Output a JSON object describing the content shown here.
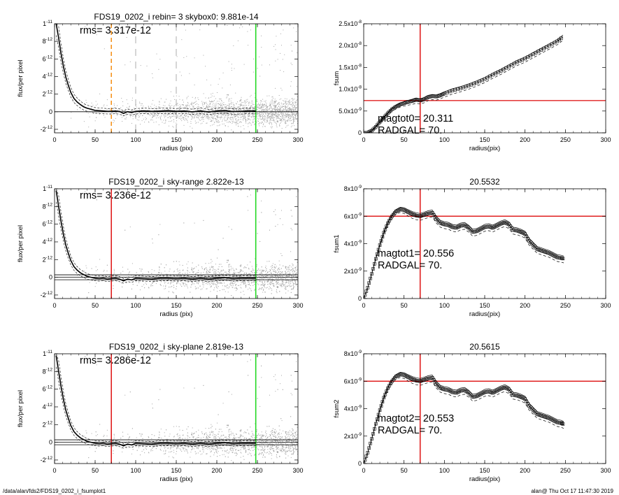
{
  "footer": {
    "left": "/data/alan/fds2/FDS19_0202_i_fsumplot1",
    "right": "alan@  Thu Oct 17 11:47:30 2019"
  },
  "colors": {
    "orange": "#f5941e",
    "green": "#23d923",
    "red": "#e02020",
    "scatter": "#a6a6a6"
  },
  "chart_data": [
    {
      "type": "scatter",
      "title": "FDS19_0202_i rebin= 3    skybox0:  9.881e-14",
      "xlabel": "radius (pix)",
      "ylabel": "flux/per pixel",
      "xlim": [
        0,
        300
      ],
      "ylim": [
        -2.4e-12,
        1e-11
      ],
      "xticks": [
        0,
        50,
        100,
        150,
        200,
        250,
        300
      ],
      "xtick_labels": [
        "0",
        "50",
        "100",
        "150",
        "200",
        "250",
        "300"
      ],
      "yticks": [
        -2e-12,
        0,
        2e-12,
        4e-12,
        6e-12,
        8e-12,
        1e-11
      ],
      "ytick_labels": [
        [
          "-2",
          "-12"
        ],
        [
          "0",
          ""
        ],
        [
          "2",
          "-12"
        ],
        [
          "4",
          "-12"
        ],
        [
          "6",
          "-12"
        ],
        [
          "8",
          "-12"
        ],
        [
          "1",
          "-11"
        ]
      ],
      "annotation": "rms= 3.317e-12",
      "vlines": [
        {
          "x": 70,
          "color": "orange",
          "style": "dashed"
        },
        {
          "x": 100,
          "color": "gray",
          "style": "dashed-thin"
        },
        {
          "x": 150,
          "color": "gray",
          "style": "dashed-thin"
        },
        {
          "x": 248,
          "color": "green",
          "style": "solid"
        }
      ],
      "profile": {
        "x": [
          2,
          5,
          8,
          11,
          14,
          17,
          20,
          24,
          28,
          32,
          36,
          40,
          45,
          50,
          55,
          60,
          65,
          70,
          75,
          80,
          85,
          90,
          95,
          100,
          110,
          120,
          130,
          140,
          150,
          160,
          170,
          180,
          190,
          200,
          210,
          220,
          230,
          240,
          248
        ],
        "y": [
          1e-11,
          8.4e-12,
          6.6e-12,
          5.1e-12,
          3.9e-12,
          3e-12,
          2.2e-12,
          1.5e-12,
          1.1e-12,
          8e-13,
          5.5e-13,
          4e-13,
          2.8e-13,
          1.5e-13,
          1.2e-13,
          9e-14,
          5e-14,
          6e-14,
          8e-14,
          3e-14,
          -2e-13,
          1e-14,
          -1e-13,
          5e-14,
          1e-13,
          5e-14,
          8e-14,
          1.2e-13,
          6e-14,
          9e-14,
          -1e-14,
          1e-13,
          -3e-14,
          9e-14,
          1.4e-13,
          2e-14,
          5e-14,
          1e-13,
          8e-14
        ]
      },
      "hlines": [
        0
      ]
    },
    {
      "type": "line",
      "title": "",
      "xlabel": "radius(pix)",
      "ylabel": "fsum",
      "xlim": [
        0,
        300
      ],
      "ylim": [
        0,
        2.5e-08
      ],
      "xticks": [
        0,
        50,
        100,
        150,
        200,
        250,
        300
      ],
      "xtick_labels": [
        "0",
        "50",
        "100",
        "150",
        "200",
        "250",
        "300"
      ],
      "yticks": [
        0,
        5e-09,
        1e-08,
        1.5e-08,
        2e-08,
        2.5e-08
      ],
      "ytick_labels": [
        [
          "0",
          ""
        ],
        [
          "5.0x10",
          "-9"
        ],
        [
          "1.0x10",
          "-8"
        ],
        [
          "1.5x10",
          "-8"
        ],
        [
          "2.0x10",
          "-8"
        ],
        [
          "2.5x10",
          "-8"
        ]
      ],
      "annotation_lines": [
        "magtot0=  20.311",
        "RADGAL=     70."
      ],
      "vlines": [
        {
          "x": 70,
          "color": "red",
          "style": "solid"
        }
      ],
      "hlines_color": [
        {
          "y": 7.4e-09,
          "color": "red"
        }
      ],
      "series": [
        {
          "x": [
            0,
            5,
            10,
            15,
            20,
            25,
            30,
            35,
            40,
            45,
            50,
            55,
            60,
            65,
            70,
            75,
            80,
            85,
            90,
            95,
            100,
            110,
            120,
            130,
            140,
            150,
            160,
            170,
            180,
            190,
            200,
            210,
            220,
            230,
            240,
            247
          ],
          "y": [
            0,
            5e-11,
            5e-10,
            1.4e-09,
            2.5e-09,
            3.5e-09,
            4.5e-09,
            5.4e-09,
            6e-09,
            6.5e-09,
            6.8e-09,
            7.1e-09,
            7.3e-09,
            7.6e-09,
            7.4e-09,
            7.7e-09,
            8.2e-09,
            8.4e-09,
            8.3e-09,
            8.6e-09,
            9e-09,
            9.7e-09,
            1.02e-08,
            1.08e-08,
            1.15e-08,
            1.23e-08,
            1.33e-08,
            1.42e-08,
            1.52e-08,
            1.62e-08,
            1.7e-08,
            1.8e-08,
            1.9e-08,
            2e-08,
            2.1e-08,
            2.2e-08
          ]
        }
      ],
      "envelope_offset": [
        4e-10,
        -8e-10
      ]
    },
    {
      "type": "scatter",
      "title": "FDS19_0202_i sky-range  2.822e-13",
      "xlabel": "radius (pix)",
      "ylabel": "flux/per pixel",
      "xlim": [
        0,
        300
      ],
      "ylim": [
        -2.4e-12,
        1e-11
      ],
      "xticks": [
        0,
        50,
        100,
        150,
        200,
        250,
        300
      ],
      "xtick_labels": [
        "0",
        "50",
        "100",
        "150",
        "200",
        "250",
        "300"
      ],
      "yticks": [
        -2e-12,
        0,
        2e-12,
        4e-12,
        6e-12,
        8e-12,
        1e-11
      ],
      "ytick_labels": [
        [
          "-2",
          "-12"
        ],
        [
          "0",
          ""
        ],
        [
          "2",
          "-12"
        ],
        [
          "4",
          "-12"
        ],
        [
          "6",
          "-12"
        ],
        [
          "8",
          "-12"
        ],
        [
          "1",
          "-11"
        ]
      ],
      "annotation": "rms= 3.236e-12",
      "vlines": [
        {
          "x": 70,
          "color": "red",
          "style": "solid"
        },
        {
          "x": 248,
          "color": "green",
          "style": "solid"
        }
      ],
      "profile": {
        "x": [
          2,
          5,
          8,
          11,
          14,
          17,
          20,
          24,
          28,
          32,
          36,
          40,
          45,
          50,
          55,
          60,
          65,
          70,
          75,
          80,
          85,
          90,
          95,
          100,
          110,
          120,
          130,
          140,
          150,
          160,
          170,
          180,
          190,
          200,
          210,
          220,
          230,
          240,
          248
        ],
        "y": [
          9.8e-12,
          8e-12,
          6.3e-12,
          4.8e-12,
          3.6e-12,
          2.7e-12,
          1.9e-12,
          1.2e-12,
          8e-13,
          5e-13,
          3e-13,
          1e-13,
          0,
          -1e-13,
          -1.5e-13,
          -1e-13,
          -2e-13,
          -1.5e-13,
          -1e-13,
          -2e-13,
          -4e-13,
          -2e-13,
          -3e-13,
          -1e-13,
          -1.5e-13,
          -2e-13,
          -1e-13,
          -1e-13,
          -1.5e-13,
          -1e-13,
          -2e-13,
          -1e-13,
          -2e-13,
          -1e-13,
          -5e-14,
          -1.5e-13,
          -1e-13,
          -1e-13,
          -1e-13
        ]
      },
      "hlines": [
        2.8e-13,
        0,
        -2.8e-13
      ]
    },
    {
      "type": "line",
      "title": "20.5532",
      "xlabel": "radius(pix)",
      "ylabel": "fsum1",
      "xlim": [
        0,
        300
      ],
      "ylim": [
        0,
        8e-09
      ],
      "xticks": [
        0,
        50,
        100,
        150,
        200,
        250,
        300
      ],
      "xtick_labels": [
        "0",
        "50",
        "100",
        "150",
        "200",
        "250",
        "300"
      ],
      "yticks": [
        0,
        2e-09,
        4e-09,
        6e-09,
        8e-09
      ],
      "ytick_labels": [
        [
          "0",
          ""
        ],
        [
          "2x10",
          "-9"
        ],
        [
          "4x10",
          "-9"
        ],
        [
          "6x10",
          "-9"
        ],
        [
          "8x10",
          "-9"
        ]
      ],
      "annotation_lines": [
        "magtot1=  20.556",
        "RADGAL=     70."
      ],
      "vlines": [
        {
          "x": 70,
          "color": "red",
          "style": "solid"
        }
      ],
      "hlines_color": [
        {
          "y": 6e-09,
          "color": "red"
        }
      ],
      "series": [
        {
          "x": [
            0,
            5,
            10,
            15,
            20,
            25,
            30,
            35,
            40,
            45,
            50,
            55,
            60,
            65,
            70,
            75,
            80,
            85,
            90,
            95,
            100,
            105,
            110,
            115,
            120,
            125,
            130,
            135,
            140,
            145,
            150,
            155,
            160,
            165,
            170,
            175,
            180,
            185,
            190,
            195,
            200,
            205,
            210,
            215,
            220,
            225,
            230,
            235,
            240,
            245,
            248
          ],
          "y": [
            0,
            8e-10,
            1.8e-09,
            2.9e-09,
            3.9e-09,
            4.8e-09,
            5.5e-09,
            6e-09,
            6.35e-09,
            6.5e-09,
            6.45e-09,
            6.3e-09,
            6.15e-09,
            6.05e-09,
            6e-09,
            6.1e-09,
            6.2e-09,
            6.25e-09,
            5.8e-09,
            5.5e-09,
            5.4e-09,
            5.35e-09,
            5.2e-09,
            5.15e-09,
            5.3e-09,
            5.35e-09,
            5.15e-09,
            4.85e-09,
            4.9e-09,
            5.05e-09,
            5.2e-09,
            5.25e-09,
            5.15e-09,
            5.3e-09,
            5.45e-09,
            5.55e-09,
            5.4e-09,
            5e-09,
            4.95e-09,
            4.85e-09,
            4.7e-09,
            4.2e-09,
            3.9e-09,
            3.6e-09,
            3.5e-09,
            3.4e-09,
            3.3e-09,
            3.15e-09,
            3e-09,
            2.95e-09,
            2.9e-09
          ]
        }
      ],
      "envelope_offset": [
        2e-10,
        -3e-10
      ]
    },
    {
      "type": "scatter",
      "title": "FDS19_0202_i sky-plane  2.819e-13",
      "xlabel": "radius (pix)",
      "ylabel": "flux/per pixel",
      "xlim": [
        0,
        300
      ],
      "ylim": [
        -2.4e-12,
        1e-11
      ],
      "xticks": [
        0,
        50,
        100,
        150,
        200,
        250,
        300
      ],
      "xtick_labels": [
        "0",
        "50",
        "100",
        "150",
        "200",
        "250",
        "300"
      ],
      "yticks": [
        -2e-12,
        0,
        2e-12,
        4e-12,
        6e-12,
        8e-12,
        1e-11
      ],
      "ytick_labels": [
        [
          "-2",
          "-12"
        ],
        [
          "0",
          ""
        ],
        [
          "2",
          "-12"
        ],
        [
          "4",
          "-12"
        ],
        [
          "6",
          "-12"
        ],
        [
          "8",
          "-12"
        ],
        [
          "1",
          "-11"
        ]
      ],
      "annotation": "rms= 3.286e-12",
      "vlines": [
        {
          "x": 70,
          "color": "red",
          "style": "solid"
        },
        {
          "x": 248,
          "color": "green",
          "style": "solid"
        }
      ],
      "profile": {
        "x": [
          2,
          5,
          8,
          11,
          14,
          17,
          20,
          24,
          28,
          32,
          36,
          40,
          45,
          50,
          55,
          60,
          65,
          70,
          75,
          80,
          85,
          90,
          95,
          100,
          110,
          120,
          130,
          140,
          150,
          160,
          170,
          180,
          190,
          200,
          210,
          220,
          230,
          240,
          248
        ],
        "y": [
          9.8e-12,
          8e-12,
          6.3e-12,
          4.8e-12,
          3.6e-12,
          2.7e-12,
          1.9e-12,
          1.2e-12,
          8e-13,
          5e-13,
          3e-13,
          1e-13,
          0,
          -1e-13,
          -1.5e-13,
          -1e-13,
          -2e-13,
          -1.5e-13,
          -1e-13,
          -2e-13,
          -4e-13,
          -2e-13,
          -3e-13,
          -1e-13,
          -1.5e-13,
          -2e-13,
          -1e-13,
          -1e-13,
          -1.5e-13,
          -1e-13,
          -2e-13,
          -1e-13,
          -2e-13,
          -1e-13,
          -5e-14,
          -1.5e-13,
          -1e-13,
          -1e-13,
          -1e-13
        ]
      },
      "hlines": [
        2.8e-13,
        0,
        -2.8e-13
      ]
    },
    {
      "type": "line",
      "title": "20.5615",
      "xlabel": "radius(pix)",
      "ylabel": "fsum2",
      "xlim": [
        0,
        300
      ],
      "ylim": [
        0,
        8e-09
      ],
      "xticks": [
        0,
        50,
        100,
        150,
        200,
        250,
        300
      ],
      "xtick_labels": [
        "0",
        "50",
        "100",
        "150",
        "200",
        "250",
        "300"
      ],
      "yticks": [
        0,
        2e-09,
        4e-09,
        6e-09,
        8e-09
      ],
      "ytick_labels": [
        [
          "0",
          ""
        ],
        [
          "2x10",
          "-9"
        ],
        [
          "4x10",
          "-9"
        ],
        [
          "6x10",
          "-9"
        ],
        [
          "8x10",
          "-9"
        ]
      ],
      "annotation_lines": [
        "magtot2=  20.553",
        "RADGAL=     70."
      ],
      "vlines": [
        {
          "x": 70,
          "color": "red",
          "style": "solid"
        }
      ],
      "hlines_color": [
        {
          "y": 6e-09,
          "color": "red"
        }
      ],
      "series": [
        {
          "x": [
            0,
            5,
            10,
            15,
            20,
            25,
            30,
            35,
            40,
            45,
            50,
            55,
            60,
            65,
            70,
            75,
            80,
            85,
            90,
            95,
            100,
            105,
            110,
            115,
            120,
            125,
            130,
            135,
            140,
            145,
            150,
            155,
            160,
            165,
            170,
            175,
            180,
            185,
            190,
            195,
            200,
            205,
            210,
            215,
            220,
            225,
            230,
            235,
            240,
            245,
            248
          ],
          "y": [
            0,
            8e-10,
            1.8e-09,
            2.9e-09,
            3.9e-09,
            4.8e-09,
            5.5e-09,
            6e-09,
            6.35e-09,
            6.5e-09,
            6.45e-09,
            6.3e-09,
            6.15e-09,
            6.05e-09,
            6e-09,
            6.1e-09,
            6.2e-09,
            6.25e-09,
            5.8e-09,
            5.5e-09,
            5.4e-09,
            5.35e-09,
            5.2e-09,
            5.15e-09,
            5.3e-09,
            5.35e-09,
            5.15e-09,
            4.85e-09,
            4.9e-09,
            5.05e-09,
            5.2e-09,
            5.25e-09,
            5.15e-09,
            5.3e-09,
            5.45e-09,
            5.55e-09,
            5.4e-09,
            5e-09,
            4.95e-09,
            4.85e-09,
            4.7e-09,
            4.2e-09,
            3.9e-09,
            3.6e-09,
            3.5e-09,
            3.4e-09,
            3.3e-09,
            3.15e-09,
            3e-09,
            2.95e-09,
            2.85e-09
          ]
        }
      ],
      "envelope_offset": [
        2e-10,
        -3e-10
      ]
    }
  ]
}
